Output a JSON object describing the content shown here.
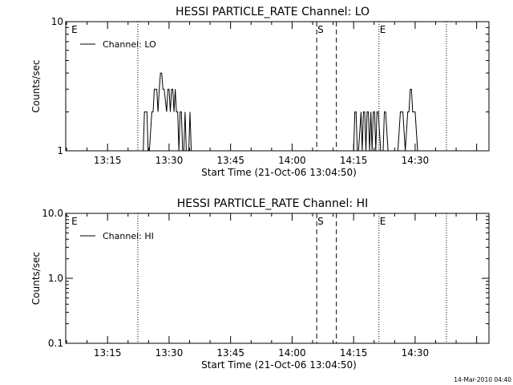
{
  "footer_timestamp": "14-Mar-2010 04:40",
  "chart_data": [
    {
      "type": "line",
      "title": "HESSI PARTICLE_RATE Channel: LO",
      "xlabel": "Start Time (21-Oct-06 13:04:50)",
      "ylabel": "Counts/sec",
      "y_scale": "log",
      "ylim": [
        1,
        10
      ],
      "y_ticks": [
        {
          "value": 1,
          "label": "1"
        },
        {
          "value": 10,
          "label": "10"
        }
      ],
      "xlim": [
        13.08,
        14.8
      ],
      "x_ticks": [
        {
          "value": 13.25,
          "label": "13:15"
        },
        {
          "value": 13.5,
          "label": "13:30"
        },
        {
          "value": 13.75,
          "label": "13:45"
        },
        {
          "value": 14.0,
          "label": "14:00"
        },
        {
          "value": 14.25,
          "label": "14:15"
        },
        {
          "value": 14.5,
          "label": "14:30"
        }
      ],
      "legend": {
        "placement": "top-left",
        "entries": [
          "Channel: LO"
        ]
      },
      "grid": false,
      "markers": [
        {
          "time": 13.1,
          "label": "E",
          "style": "none"
        },
        {
          "time": 13.373,
          "label": "",
          "style": "dotted"
        },
        {
          "time": 14.1,
          "label": "S",
          "style": "dashed"
        },
        {
          "time": 14.18,
          "label": "",
          "style": "dashed"
        },
        {
          "time": 14.353,
          "label": "E",
          "style": "dotted"
        },
        {
          "time": 14.627,
          "label": "",
          "style": "dotted"
        }
      ],
      "series": [
        {
          "name": "Channel: LO",
          "x": [
            13.1,
            13.395,
            13.4,
            13.41,
            13.415,
            13.42,
            13.43,
            13.435,
            13.44,
            13.45,
            13.455,
            13.46,
            13.465,
            13.47,
            13.475,
            13.48,
            13.49,
            13.495,
            13.5,
            13.505,
            13.51,
            13.515,
            13.52,
            13.525,
            13.53,
            13.535,
            13.54,
            13.545,
            13.55,
            13.555,
            13.56,
            13.565,
            13.57,
            13.575,
            13.58,
            13.585,
            13.59,
            13.6,
            13.61,
            13.62,
            14.25,
            14.255,
            14.26,
            14.265,
            14.27,
            14.28,
            14.285,
            14.29,
            14.295,
            14.3,
            14.305,
            14.31,
            14.315,
            14.32,
            14.325,
            14.33,
            14.335,
            14.34,
            14.345,
            14.35,
            14.36,
            14.37,
            14.375,
            14.38,
            14.39,
            14.4,
            14.41,
            14.42,
            14.43,
            14.44,
            14.45,
            14.46,
            14.47,
            14.475,
            14.48,
            14.485,
            14.49,
            14.5,
            14.51,
            14.52,
            14.53,
            14.8
          ],
          "values": [
            1,
            1,
            2,
            2,
            1,
            1,
            2,
            2,
            3,
            3,
            2,
            3,
            4,
            4,
            3,
            3,
            2,
            3,
            3,
            2,
            3,
            3,
            2,
            3,
            2,
            2,
            1,
            2,
            2,
            1,
            1,
            2,
            1,
            1,
            1,
            2,
            1,
            1,
            1,
            1,
            1,
            2,
            2,
            1,
            1,
            2,
            1,
            2,
            2,
            1,
            2,
            2,
            1,
            2,
            1,
            2,
            2,
            1,
            2,
            2,
            1,
            1,
            2,
            2,
            1,
            1,
            1,
            1,
            1,
            2,
            2,
            1,
            2,
            2,
            3,
            3,
            2,
            2,
            1,
            1,
            1,
            1
          ]
        }
      ]
    },
    {
      "type": "line",
      "title": "HESSI PARTICLE_RATE Channel: HI",
      "xlabel": "Start Time (21-Oct-06 13:04:50)",
      "ylabel": "Counts/sec",
      "y_scale": "log",
      "ylim": [
        0.1,
        10
      ],
      "y_ticks": [
        {
          "value": 0.1,
          "label": "0.1"
        },
        {
          "value": 1,
          "label": "1.0"
        },
        {
          "value": 10,
          "label": "10.0"
        }
      ],
      "xlim": [
        13.08,
        14.8
      ],
      "x_ticks": [
        {
          "value": 13.25,
          "label": "13:15"
        },
        {
          "value": 13.5,
          "label": "13:30"
        },
        {
          "value": 13.75,
          "label": "13:45"
        },
        {
          "value": 14.0,
          "label": "14:00"
        },
        {
          "value": 14.25,
          "label": "14:15"
        },
        {
          "value": 14.5,
          "label": "14:30"
        }
      ],
      "legend": {
        "placement": "top-left",
        "entries": [
          "Channel: HI"
        ]
      },
      "grid": false,
      "markers": [
        {
          "time": 13.1,
          "label": "E",
          "style": "none"
        },
        {
          "time": 13.373,
          "label": "",
          "style": "dotted"
        },
        {
          "time": 14.1,
          "label": "S",
          "style": "dashed"
        },
        {
          "time": 14.18,
          "label": "",
          "style": "dashed"
        },
        {
          "time": 14.353,
          "label": "E",
          "style": "dotted"
        },
        {
          "time": 14.627,
          "label": "",
          "style": "dotted"
        }
      ],
      "series": [
        {
          "name": "Channel: HI",
          "x": [],
          "values": []
        }
      ]
    }
  ]
}
